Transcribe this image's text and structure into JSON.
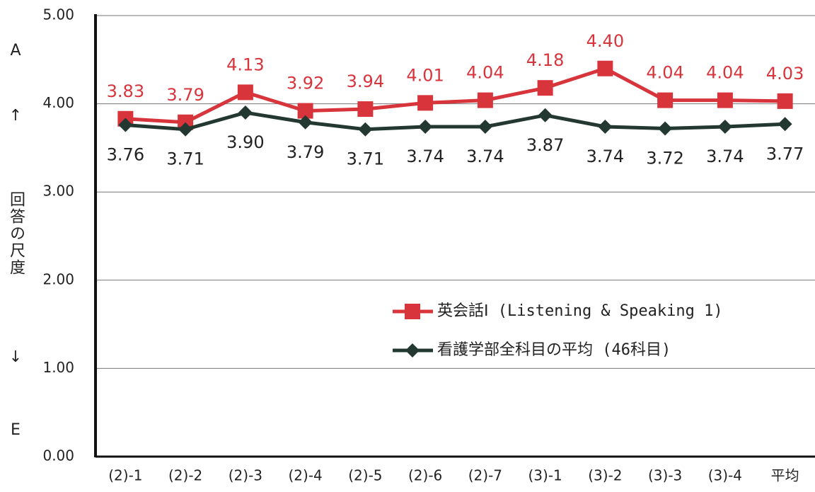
{
  "chart_data": {
    "type": "line",
    "categories": [
      "(2)-1",
      "(2)-2",
      "(2)-3",
      "(2)-4",
      "(2)-5",
      "(2)-6",
      "(2)-7",
      "(3)-1",
      "(3)-2",
      "(3)-3",
      "(3)-4",
      "平均"
    ],
    "series": [
      {
        "name": "英会話Ⅰ (Listening & Speaking 1)",
        "color": "#d7343b",
        "marker": "square",
        "values": [
          3.83,
          3.79,
          4.13,
          3.92,
          3.94,
          4.01,
          4.04,
          4.18,
          4.4,
          4.04,
          4.04,
          4.03
        ],
        "value_labels": [
          "3.83",
          "3.79",
          "4.13",
          "3.92",
          "3.94",
          "4.01",
          "4.04",
          "4.18",
          "4.40",
          "4.04",
          "4.04",
          "4.03"
        ]
      },
      {
        "name": "看護学部全科目の平均 (46科目)",
        "color": "#243832",
        "marker": "diamond",
        "values": [
          3.76,
          3.71,
          3.9,
          3.79,
          3.71,
          3.74,
          3.74,
          3.87,
          3.74,
          3.72,
          3.74,
          3.77
        ],
        "value_labels": [
          "3.76",
          "3.71",
          "3.90",
          "3.79",
          "3.71",
          "3.74",
          "3.74",
          "3.87",
          "3.74",
          "3.72",
          "3.74",
          "3.77"
        ]
      }
    ],
    "ylim": [
      0,
      5
    ],
    "yticks": [
      {
        "value": 0,
        "label": "0.00"
      },
      {
        "value": 1,
        "label": "1.00"
      },
      {
        "value": 2,
        "label": "2.00"
      },
      {
        "value": 3,
        "label": "3.00"
      },
      {
        "value": 4,
        "label": "4.00"
      },
      {
        "value": 5,
        "label": "5.00"
      }
    ],
    "grid": true,
    "ylabel_parts": [
      "A",
      "↑",
      "回答の尺度",
      "↓",
      "E"
    ]
  }
}
